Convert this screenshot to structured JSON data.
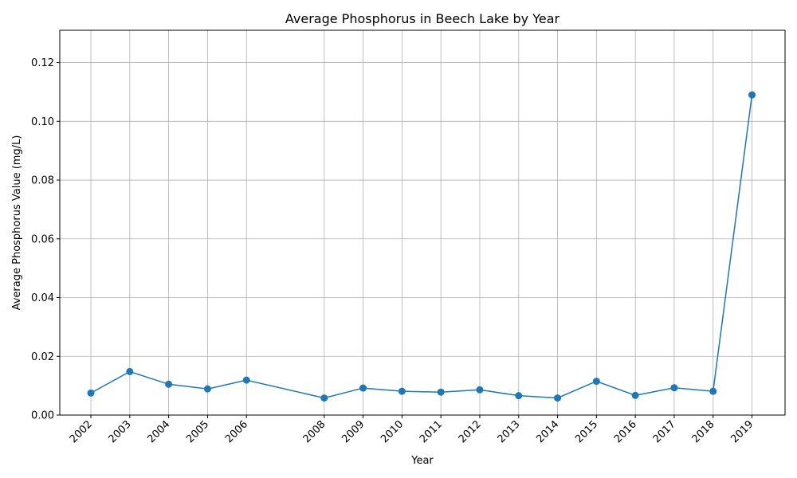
{
  "chart_data": {
    "type": "line",
    "title": "Average Phosphorus in Beech Lake by Year",
    "xlabel": "Year",
    "ylabel": "Average Phosphorus Value (mg/L)",
    "x": [
      2002,
      2003,
      2004,
      2005,
      2006,
      2008,
      2009,
      2010,
      2011,
      2012,
      2013,
      2014,
      2015,
      2016,
      2017,
      2018,
      2019
    ],
    "x_tick_labels": [
      "2002",
      "2003",
      "2004",
      "2005",
      "2006",
      "2008",
      "2009",
      "2010",
      "2011",
      "2012",
      "2013",
      "2014",
      "2015",
      "2016",
      "2017",
      "2018",
      "2019"
    ],
    "series": [
      {
        "values": [
          0.0075,
          0.0148,
          0.0105,
          0.0089,
          0.0119,
          0.0058,
          0.0092,
          0.0081,
          0.0078,
          0.0086,
          0.0066,
          0.0058,
          0.0115,
          0.0067,
          0.0093,
          0.0081,
          0.109
        ],
        "color": "#1f77b4",
        "marker": "circle"
      }
    ],
    "ylim": [
      0,
      0.131
    ],
    "y_ticks": [
      0.0,
      0.02,
      0.04,
      0.06,
      0.08,
      0.1,
      0.12
    ],
    "y_tick_labels": [
      "0.00",
      "0.02",
      "0.04",
      "0.06",
      "0.08",
      "0.10",
      "0.12"
    ],
    "xlim": [
      2001.2,
      2019.85
    ],
    "grid": true,
    "legend": "none"
  }
}
